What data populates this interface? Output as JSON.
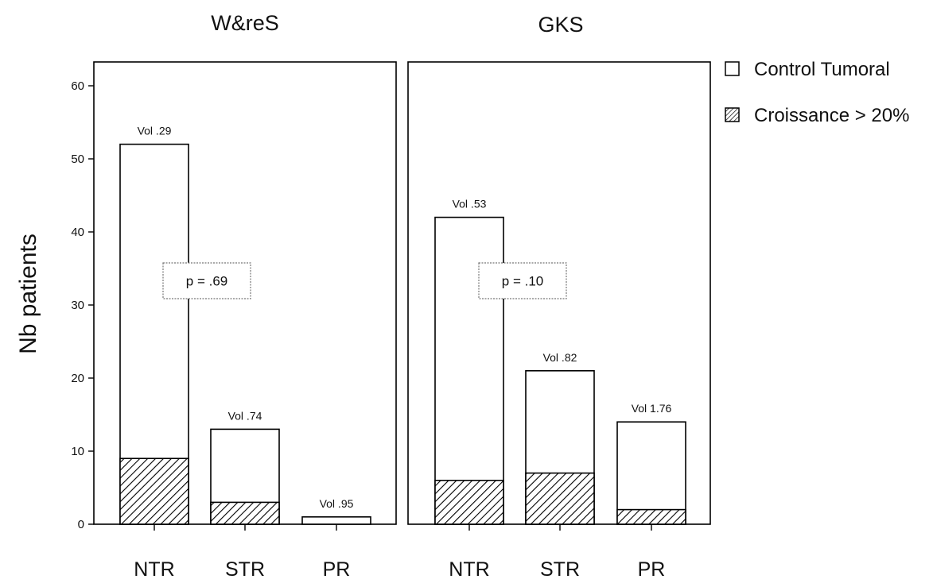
{
  "chart_data": [
    {
      "type": "bar",
      "title": "W&reS",
      "ylabel": "Nb patients",
      "ylim": [
        0,
        60
      ],
      "yticks": [
        0,
        10,
        20,
        30,
        40,
        50,
        60
      ],
      "categories": [
        "NTR",
        "STR",
        "PR"
      ],
      "series": [
        {
          "name": "Croissance > 20%",
          "values": [
            9,
            3,
            0
          ]
        },
        {
          "name": "Control Tumoral",
          "values": [
            52,
            13,
            1
          ]
        }
      ],
      "bar_labels": [
        "Vol .29",
        "Vol .74",
        "Vol .95"
      ],
      "annotation": "p = .69"
    },
    {
      "type": "bar",
      "title": "GKS",
      "ylim": [
        0,
        60
      ],
      "categories": [
        "NTR",
        "STR",
        "PR"
      ],
      "series": [
        {
          "name": "Croissance > 20%",
          "values": [
            6,
            7,
            2
          ]
        },
        {
          "name": "Control Tumoral",
          "values": [
            42,
            21,
            14
          ]
        }
      ],
      "bar_labels": [
        "Vol .53",
        "Vol .82",
        "Vol  1.76"
      ],
      "annotation": "p = .10"
    }
  ],
  "legend": {
    "items": [
      {
        "label": "Control Tumoral",
        "swatch": "empty"
      },
      {
        "label": "Croissance > 20%",
        "swatch": "hatched"
      }
    ]
  },
  "colors": {
    "bar_fill": "#ffffff",
    "stroke": "#000000",
    "hatch": "#000000"
  }
}
